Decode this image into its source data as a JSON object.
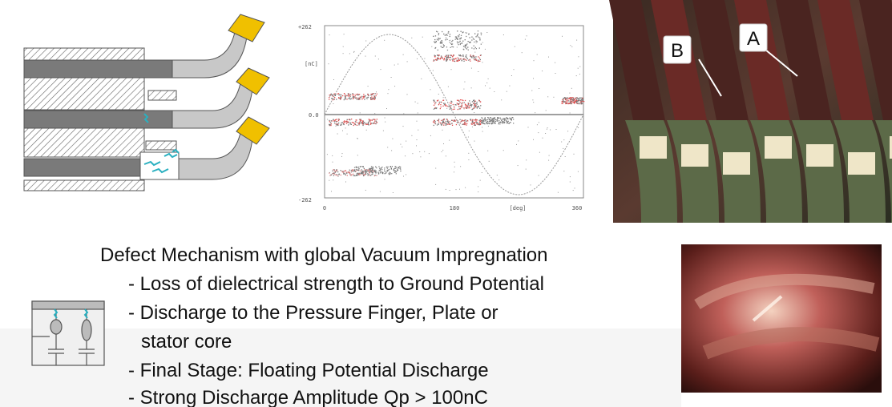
{
  "plot": {
    "y_top": "+262",
    "y_unit": "[nC]",
    "y_mid": "0.0",
    "y_bottom": "-262",
    "x_start": "0",
    "x_mid": "180",
    "x_unit": "[deg]",
    "x_end": "360"
  },
  "photo_labels": [
    "B",
    "A"
  ],
  "heading": "Defect Mechanism with global Vacuum Impregnation",
  "bullets": [
    "- Loss of dielectrical strength to Ground Potential",
    "- Discharge to the Pressure Finger, Plate or",
    "stator core",
    "- Final Stage: Floating Potential Discharge",
    "- Strong Discharge Amplitude Qp > 100nC"
  ]
}
